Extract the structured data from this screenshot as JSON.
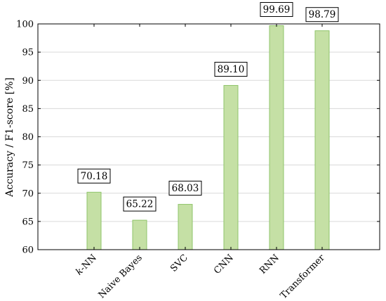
{
  "chart_data": {
    "type": "bar",
    "title": "",
    "xlabel": "",
    "ylabel": "Accuracy / F1-score [%]",
    "ylim": [
      60,
      100
    ],
    "yticks": [
      60,
      65,
      70,
      75,
      80,
      85,
      90,
      95,
      100
    ],
    "grid": true,
    "categories": [
      "k-NN",
      "Naive Bayes",
      "SVC",
      "CNN",
      "RNN",
      "Transformer"
    ],
    "values": [
      70.18,
      65.22,
      68.03,
      89.1,
      99.69,
      98.79
    ],
    "data_labels": [
      "70.18",
      "65.22",
      "68.03",
      "89.10",
      "99.69",
      "98.79"
    ],
    "bar_fill": "#c5e0a5",
    "bar_stroke": "#8fc46a"
  }
}
